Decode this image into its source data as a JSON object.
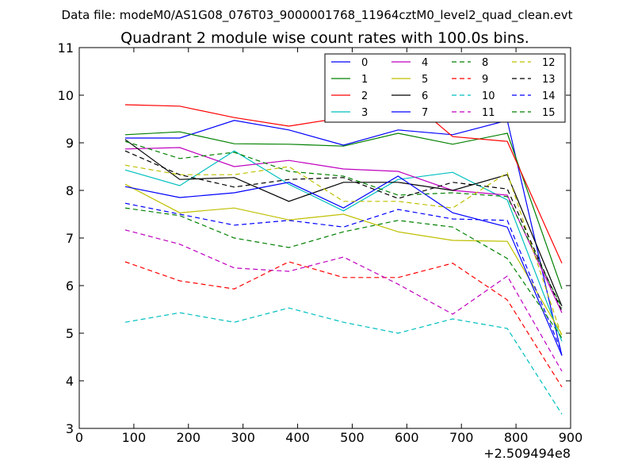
{
  "page": {
    "suptitle": "Data file: modeM0/AS1G08_076T03_9000001768_11964cztM0_level2_quad_clean.evt",
    "title": "Quadrant 2 module wise count rates with 100.0s bins."
  },
  "chart_data": {
    "type": "line",
    "title": "Quadrant 2 module wise count rates with 100.0s bins.",
    "xlabel": "",
    "ylabel": "",
    "x_offset_label": "+2.509494e8",
    "xlim": [
      0,
      900
    ],
    "ylim": [
      3,
      11
    ],
    "xticks": [
      0,
      100,
      200,
      300,
      400,
      500,
      600,
      700,
      800,
      900
    ],
    "yticks": [
      3,
      4,
      5,
      6,
      7,
      8,
      9,
      10,
      11
    ],
    "grid": false,
    "legend_position": "top-right",
    "x": [
      84,
      184,
      284,
      384,
      484,
      584,
      684,
      784,
      884
    ],
    "series": [
      {
        "name": "0",
        "color": "#0000ff",
        "style": "solid",
        "values": [
          9.1,
          9.1,
          9.47,
          9.27,
          8.95,
          9.27,
          9.17,
          9.47,
          4.53
        ]
      },
      {
        "name": "1",
        "color": "#008000",
        "style": "solid",
        "values": [
          9.17,
          9.23,
          8.98,
          8.97,
          8.93,
          9.2,
          8.97,
          9.2,
          5.93
        ]
      },
      {
        "name": "2",
        "color": "#ff0000",
        "style": "solid",
        "values": [
          9.8,
          9.77,
          9.53,
          9.35,
          9.53,
          10.1,
          9.13,
          9.03,
          6.47
        ]
      },
      {
        "name": "3",
        "color": "#00bfbf",
        "style": "solid",
        "values": [
          8.43,
          8.1,
          8.83,
          8.13,
          7.57,
          8.23,
          8.38,
          7.8,
          4.83
        ]
      },
      {
        "name": "4",
        "color": "#bf00bf",
        "style": "solid",
        "values": [
          8.87,
          8.9,
          8.5,
          8.63,
          8.45,
          8.4,
          8.0,
          7.9,
          5.43
        ]
      },
      {
        "name": "5",
        "color": "#bfbf00",
        "style": "solid",
        "values": [
          8.13,
          7.53,
          7.63,
          7.38,
          7.5,
          7.13,
          6.95,
          6.93,
          4.97
        ]
      },
      {
        "name": "6",
        "color": "#000000",
        "style": "solid",
        "values": [
          9.07,
          8.23,
          8.27,
          7.77,
          8.17,
          8.17,
          8.0,
          8.33,
          5.57
        ]
      },
      {
        "name": "7",
        "color": "#0000ff",
        "style": "solid",
        "values": [
          8.08,
          7.85,
          7.95,
          8.17,
          7.63,
          8.3,
          7.53,
          7.23,
          4.53
        ]
      },
      {
        "name": "8",
        "color": "#008000",
        "style": "dashed",
        "values": [
          9.03,
          8.67,
          8.8,
          8.4,
          8.3,
          7.9,
          7.95,
          7.87,
          5.53
        ]
      },
      {
        "name": "9",
        "color": "#ff0000",
        "style": "dashed",
        "values": [
          6.5,
          6.1,
          5.93,
          6.5,
          6.17,
          6.17,
          6.47,
          5.7,
          3.87
        ]
      },
      {
        "name": "10",
        "color": "#00bfbf",
        "style": "dashed",
        "values": [
          5.23,
          5.43,
          5.23,
          5.53,
          5.23,
          5.0,
          5.3,
          5.1,
          3.3
        ]
      },
      {
        "name": "11",
        "color": "#bf00bf",
        "style": "dashed",
        "values": [
          7.17,
          6.87,
          6.37,
          6.3,
          6.6,
          6.03,
          5.4,
          6.2,
          4.2
        ]
      },
      {
        "name": "12",
        "color": "#bfbf00",
        "style": "dashed",
        "values": [
          8.53,
          8.33,
          8.33,
          8.5,
          7.77,
          7.77,
          7.63,
          8.37,
          4.93
        ]
      },
      {
        "name": "13",
        "color": "#000000",
        "style": "dashed",
        "values": [
          8.83,
          8.33,
          8.07,
          8.23,
          8.27,
          7.83,
          8.17,
          8.03,
          5.47
        ]
      },
      {
        "name": "14",
        "color": "#0000ff",
        "style": "dashed",
        "values": [
          7.73,
          7.5,
          7.27,
          7.37,
          7.23,
          7.6,
          7.4,
          7.37,
          4.6
        ]
      },
      {
        "name": "15",
        "color": "#008000",
        "style": "dashed",
        "values": [
          7.63,
          7.47,
          7.0,
          6.8,
          7.13,
          7.37,
          7.23,
          6.57,
          4.9
        ]
      }
    ]
  }
}
